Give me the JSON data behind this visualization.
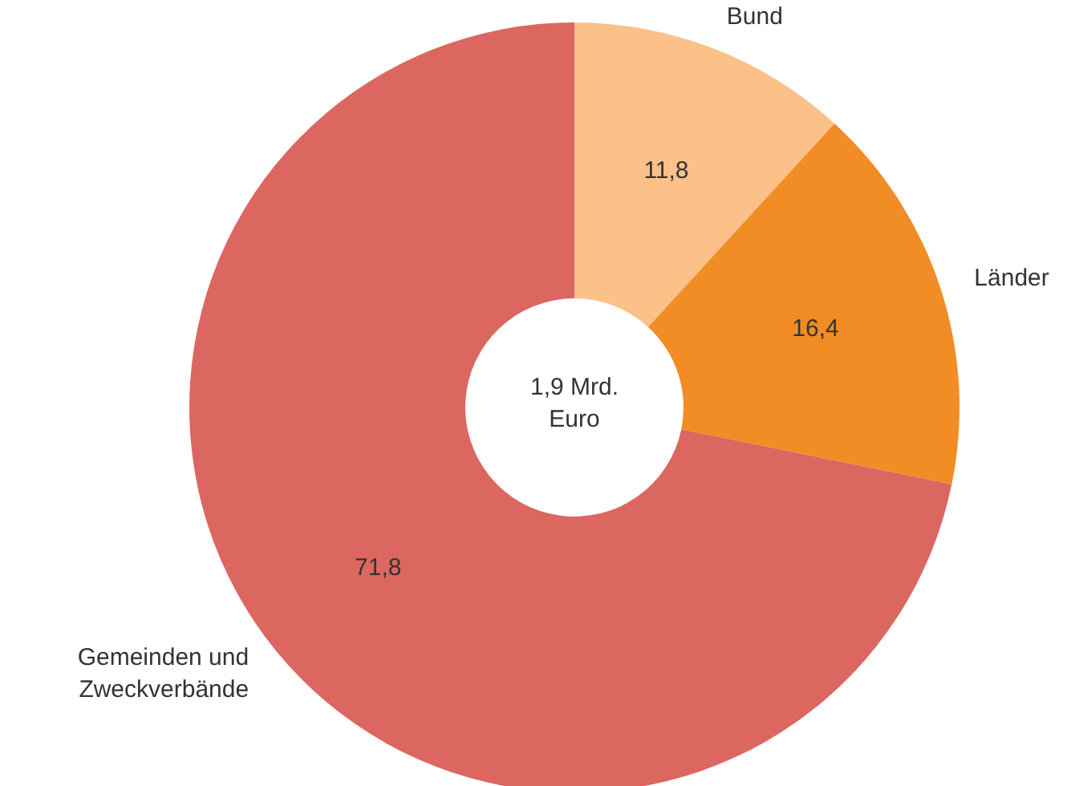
{
  "chart_data": {
    "type": "donut",
    "categories": [
      "Bund",
      "Länder",
      "Gemeinden und Zweckverbände"
    ],
    "values": [
      11.8,
      16.4,
      71.8
    ],
    "value_labels": [
      "11,8",
      "16,4",
      "71,8"
    ],
    "colors": [
      "#fbc189",
      "#f28c24",
      "#dc6760"
    ],
    "annotations": [
      "1,9 Mrd. Euro"
    ]
  }
}
